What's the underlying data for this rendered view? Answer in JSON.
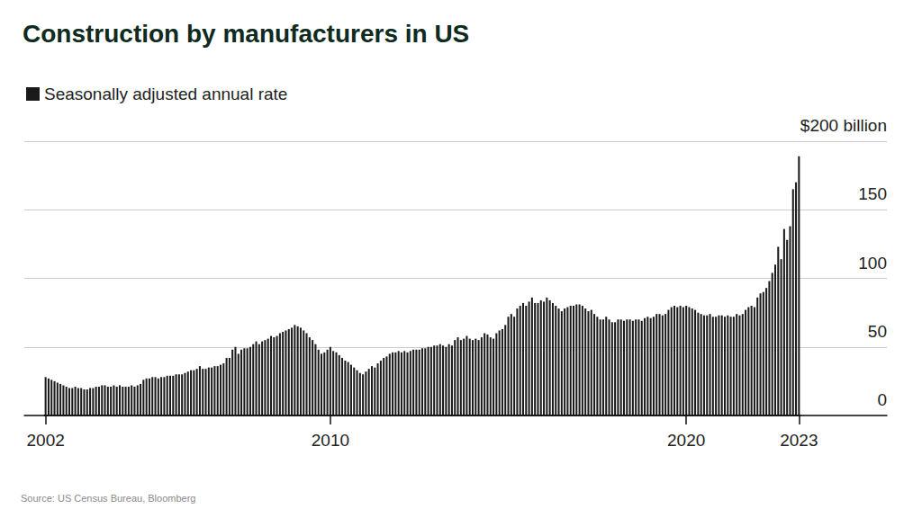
{
  "chart_data": {
    "type": "bar",
    "title": "Construction by manufacturers in US",
    "source": "Source: US Census Bureau, Bloomberg",
    "categories": [
      "2002",
      null,
      null,
      null,
      null,
      null,
      null,
      null,
      null,
      null,
      null,
      null,
      null,
      null,
      null,
      null,
      null,
      null,
      null,
      null,
      null,
      null,
      null,
      null,
      null,
      null,
      null,
      null,
      null,
      null,
      null,
      null,
      null,
      null,
      null,
      null,
      null,
      null,
      null,
      null,
      null,
      null,
      null,
      null,
      null,
      null,
      null,
      null,
      null,
      null,
      null,
      null,
      null,
      null,
      null,
      null,
      null,
      null,
      null,
      null,
      null,
      null,
      null,
      null,
      null,
      null,
      null,
      null,
      null,
      null,
      null,
      null,
      null,
      null,
      null,
      null,
      null,
      null,
      null,
      null,
      null,
      null,
      null,
      null,
      null,
      null,
      null,
      null,
      null,
      null,
      null,
      null,
      null,
      null,
      null,
      null,
      "2010",
      null,
      null,
      null,
      null,
      null,
      null,
      null,
      null,
      null,
      null,
      null,
      null,
      null,
      null,
      null,
      null,
      null,
      null,
      null,
      null,
      null,
      null,
      null,
      null,
      null,
      null,
      null,
      null,
      null,
      null,
      null,
      null,
      null,
      null,
      null,
      null,
      null,
      null,
      null,
      null,
      null,
      null,
      null,
      null,
      null,
      null,
      null,
      null,
      null,
      null,
      null,
      null,
      null,
      null,
      null,
      null,
      null,
      null,
      null,
      null,
      null,
      null,
      null,
      null,
      null,
      null,
      null,
      null,
      null,
      null,
      null,
      null,
      null,
      null,
      null,
      null,
      null,
      null,
      null,
      null,
      null,
      null,
      null,
      null,
      null,
      null,
      null,
      null,
      null,
      null,
      null,
      null,
      null,
      null,
      null,
      null,
      null,
      null,
      null,
      null,
      null,
      null,
      null,
      null,
      null,
      null,
      null,
      null,
      null,
      null,
      null,
      null,
      null,
      null,
      null,
      null,
      null,
      null,
      null,
      "2020",
      null,
      null,
      null,
      null,
      null,
      null,
      null,
      null,
      null,
      null,
      null,
      null,
      null,
      null,
      null,
      null,
      null,
      null,
      null,
      null,
      null,
      null,
      null,
      null,
      null,
      null,
      null,
      null,
      null,
      null,
      null,
      null,
      null,
      null,
      null,
      null,
      null,
      "2023"
    ],
    "series": [
      {
        "name": "Seasonally adjusted annual rate",
        "color": "#1a1a1a",
        "values": [
          28,
          27,
          26,
          25,
          24,
          23,
          22,
          21,
          20,
          20,
          21,
          20,
          20,
          19,
          19,
          20,
          20,
          21,
          21,
          22,
          22,
          21,
          21,
          22,
          21,
          22,
          21,
          21,
          21,
          22,
          21,
          22,
          23,
          26,
          27,
          27,
          28,
          28,
          27,
          28,
          28,
          29,
          29,
          29,
          30,
          30,
          30,
          31,
          32,
          33,
          33,
          34,
          36,
          34,
          34,
          35,
          35,
          36,
          36,
          37,
          38,
          42,
          42,
          48,
          50,
          45,
          48,
          49,
          49,
          50,
          52,
          54,
          52,
          54,
          55,
          56,
          58,
          57,
          58,
          60,
          61,
          62,
          63,
          64,
          66,
          65,
          64,
          62,
          60,
          57,
          55,
          52,
          48,
          45,
          46,
          48,
          50,
          47,
          46,
          44,
          42,
          40,
          39,
          37,
          35,
          33,
          31,
          30,
          32,
          34,
          36,
          35,
          38,
          40,
          42,
          43,
          45,
          46,
          46,
          47,
          46,
          47,
          46,
          47,
          48,
          48,
          48,
          49,
          49,
          50,
          50,
          51,
          51,
          52,
          51,
          50,
          52,
          51,
          55,
          57,
          55,
          56,
          58,
          56,
          55,
          56,
          55,
          57,
          60,
          59,
          57,
          56,
          60,
          62,
          63,
          66,
          72,
          74,
          72,
          78,
          80,
          82,
          80,
          83,
          86,
          82,
          82,
          84,
          83,
          86,
          84,
          82,
          80,
          78,
          76,
          78,
          79,
          80,
          80,
          81,
          81,
          80,
          78,
          76,
          77,
          74,
          72,
          70,
          70,
          72,
          70,
          68,
          68,
          70,
          70,
          69,
          70,
          70,
          69,
          70,
          70,
          69,
          71,
          72,
          71,
          72,
          74,
          74,
          73,
          74,
          77,
          79,
          80,
          79,
          80,
          79,
          80,
          79,
          78,
          77,
          75,
          74,
          73,
          73,
          74,
          72,
          72,
          73,
          73,
          72,
          73,
          72,
          72,
          74,
          73,
          74,
          77,
          79,
          80,
          79,
          86,
          89,
          90,
          93,
          98,
          104,
          110,
          123,
          114,
          136,
          128,
          138,
          165,
          170,
          189
        ]
      }
    ],
    "ylim": [
      0,
      200
    ],
    "yticks": [
      0,
      50,
      100,
      150,
      {
        "value": 200,
        "label": "$200 billion"
      }
    ],
    "grid": true,
    "legend": "top-left"
  }
}
